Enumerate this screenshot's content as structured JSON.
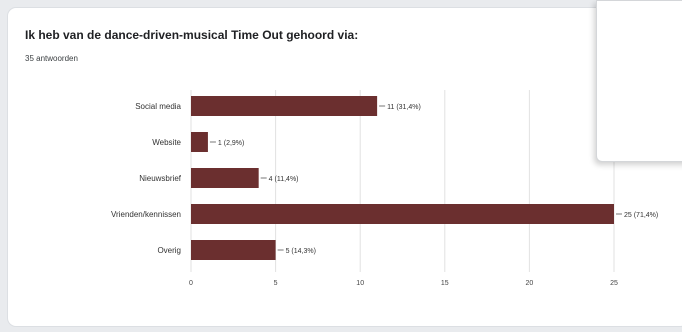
{
  "header": {
    "title": "Ik heb van de dance-driven-musical Time Out gehoord via:",
    "response_count": "35 antwoorden"
  },
  "chart_data": {
    "type": "bar",
    "orientation": "horizontal",
    "categories": [
      "Social media",
      "Website",
      "Nieuwsbrief",
      "Vrienden/kennissen",
      "Overig"
    ],
    "values": [
      11,
      1,
      4,
      25,
      5
    ],
    "data_labels": [
      "11 (31,4%)",
      "1 (2,9%)",
      "4 (11,4%)",
      "25 (71,4%)",
      "5 (14,3%)"
    ],
    "xticks": [
      0,
      5,
      10,
      15,
      20,
      25
    ],
    "xlim": [
      0,
      25
    ],
    "grid": true,
    "bar_color": "#6b2f2f"
  }
}
